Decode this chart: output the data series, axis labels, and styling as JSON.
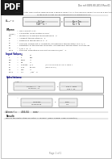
{
  "bg_color": "#ffffff",
  "header_bg": "#1a1a1a",
  "header_text": "PDF",
  "header_text_color": "#ffffff",
  "doc_ref": "Doc ref: IEEE-80-2013 Rev-01",
  "page_title_line1": "The conductor cross section required from a ground conductor, or the required conductor size as a function",
  "page_title_line2": "of the fault current can be obtained from following formula:",
  "where_label": "Where:",
  "variables": [
    [
      "I",
      "=",
      "rms current in kA"
    ],
    [
      "A(mm²)",
      "=",
      "Conductor cross section in mm²"
    ],
    [
      "Tm",
      "=",
      "Maximum allowable temperature in °C"
    ],
    [
      "Ta",
      "=",
      "Ambient temperature in °C"
    ],
    [
      "Tr",
      "=",
      "Reference temperature in °C"
    ],
    [
      "αr",
      "=",
      "Thermal coefficient of resistivity at reference temperature Tr in 1/°C"
    ],
    [
      "ρr",
      "=",
      "Resistivity of the ground conductor at reference temperature Tr in μΩ.cm"
    ],
    [
      "Ko",
      "=",
      "1/αr + Tr °C"
    ],
    [
      "TCAP",
      "=",
      "Thermal capacitance per unit volume in J/cm³ °C"
    ]
  ],
  "input_values_label": "Input Values:",
  "input_values_color": "#000080",
  "inputs": [
    [
      "I",
      "=",
      "30",
      "kA"
    ],
    [
      "tc",
      "=",
      "1",
      "Sec"
    ],
    [
      "Tm",
      "=",
      "1084",
      "°C"
    ],
    [
      "Ta",
      "=",
      "40",
      "°C"
    ],
    [
      "αr",
      "=",
      "0.00381",
      "1/°C",
      "(Values as IEEE-80-2013 Table 1"
    ],
    [
      "ρr",
      "=",
      "1.72",
      "μΩ.cm",
      "(Page 56-60)"
    ],
    [
      "Ko",
      "=",
      "234",
      "°C"
    ],
    [
      "TCAP",
      "=",
      "3.4",
      "J/cm³ °C"
    ]
  ],
  "calculations_label": "Calculations:",
  "calculations_color": "#000080",
  "calc_result": "A(mm²) =      466.84      mm²",
  "result_label": "Result:",
  "result_text": "Size of the Earth Strap Selected is 160mm² (Bare Copper Tape Conductor)",
  "page_number": "Page 1 of 1"
}
